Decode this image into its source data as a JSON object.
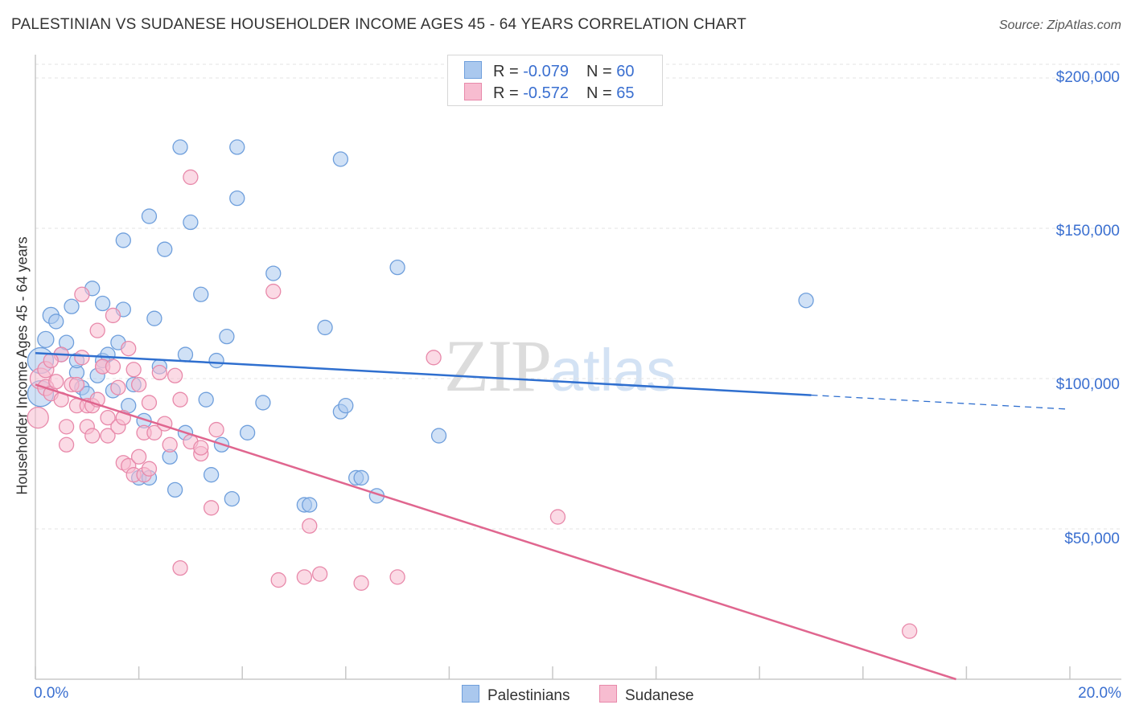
{
  "title": "PALESTINIAN VS SUDANESE HOUSEHOLDER INCOME AGES 45 - 64 YEARS CORRELATION CHART",
  "source": "Source: ZipAtlas.com",
  "watermark": {
    "zip": "ZIP",
    "atlas": "atlas"
  },
  "legend": {
    "rows": [
      {
        "r_label": "R = ",
        "r_value": "-0.079",
        "n_label": "N = ",
        "n_value": "60"
      },
      {
        "r_label": "R = ",
        "r_value": "-0.572",
        "n_label": "N = ",
        "n_value": "65"
      }
    ]
  },
  "bottom_legend": [
    "Palestinians",
    "Sudanese"
  ],
  "colors": {
    "palestinians_fill": "#aac8ee",
    "palestinians_stroke": "#6f9fdc",
    "palestinians_line": "#2f6fcf",
    "sudanese_fill": "#f7bcd0",
    "sudanese_stroke": "#e889aa",
    "sudanese_line": "#e0668f",
    "tick_text": "#3a6fd0",
    "grid": "#e3e3e3"
  },
  "chart_data": {
    "type": "scatter",
    "title": "PALESTINIAN VS SUDANESE HOUSEHOLDER INCOME AGES 45 - 64 YEARS CORRELATION CHART",
    "xlabel": "",
    "ylabel": "Householder Income Ages 45 - 64 years",
    "xlim": [
      0,
      20
    ],
    "ylim": [
      0,
      205000
    ],
    "x_tick_labels": [
      "0.0%",
      "20.0%"
    ],
    "y_ticks": [
      50000,
      100000,
      150000,
      200000
    ],
    "y_tick_labels": [
      "$50,000",
      "$100,000",
      "$150,000",
      "$200,000"
    ],
    "grid": "horizontal dashed",
    "series": [
      {
        "name": "Palestinians",
        "r": -0.079,
        "n": 60,
        "trend": {
          "x0": 0.0,
          "y0": 108500,
          "x1": 15.0,
          "y1": 94500,
          "dashed_to_x": 20.0,
          "dashed_to_y": 89800
        },
        "points": [
          [
            0.1,
            106000,
            16
          ],
          [
            0.1,
            95000,
            16
          ],
          [
            0.2,
            113000,
            10
          ],
          [
            0.3,
            121000,
            10
          ],
          [
            0.4,
            119000,
            9
          ],
          [
            0.5,
            108000,
            9
          ],
          [
            0.6,
            112000,
            9
          ],
          [
            0.7,
            124000,
            9
          ],
          [
            0.8,
            102000,
            9
          ],
          [
            0.8,
            106000,
            9
          ],
          [
            0.9,
            97000,
            9
          ],
          [
            1.0,
            95000,
            9
          ],
          [
            1.1,
            130000,
            9
          ],
          [
            1.2,
            101000,
            9
          ],
          [
            1.3,
            125000,
            9
          ],
          [
            1.3,
            106000,
            9
          ],
          [
            1.4,
            108000,
            9
          ],
          [
            1.5,
            96000,
            9
          ],
          [
            1.6,
            112000,
            9
          ],
          [
            1.7,
            123000,
            9
          ],
          [
            1.7,
            146000,
            9
          ],
          [
            1.8,
            91000,
            9
          ],
          [
            1.9,
            98000,
            9
          ],
          [
            2.0,
            67000,
            9
          ],
          [
            2.1,
            86000,
            9
          ],
          [
            2.2,
            67000,
            9
          ],
          [
            2.2,
            154000,
            9
          ],
          [
            2.3,
            120000,
            9
          ],
          [
            2.4,
            104000,
            9
          ],
          [
            2.5,
            143000,
            9
          ],
          [
            2.6,
            74000,
            9
          ],
          [
            2.7,
            63000,
            9
          ],
          [
            2.8,
            177000,
            9
          ],
          [
            2.9,
            108000,
            9
          ],
          [
            2.9,
            82000,
            9
          ],
          [
            3.0,
            152000,
            9
          ],
          [
            3.2,
            128000,
            9
          ],
          [
            3.3,
            93000,
            9
          ],
          [
            3.4,
            68000,
            9
          ],
          [
            3.5,
            106000,
            9
          ],
          [
            3.6,
            78000,
            9
          ],
          [
            3.7,
            114000,
            9
          ],
          [
            3.8,
            60000,
            9
          ],
          [
            3.9,
            177000,
            9
          ],
          [
            3.9,
            160000,
            9
          ],
          [
            4.1,
            82000,
            9
          ],
          [
            4.4,
            92000,
            9
          ],
          [
            4.6,
            135000,
            9
          ],
          [
            5.2,
            58000,
            9
          ],
          [
            5.3,
            58000,
            9
          ],
          [
            5.6,
            117000,
            9
          ],
          [
            5.9,
            173000,
            9
          ],
          [
            5.9,
            89000,
            9
          ],
          [
            6.0,
            91000,
            9
          ],
          [
            6.2,
            67000,
            9
          ],
          [
            6.3,
            67000,
            9
          ],
          [
            6.6,
            61000,
            9
          ],
          [
            7.0,
            137000,
            9
          ],
          [
            7.8,
            81000,
            9
          ],
          [
            14.9,
            126000,
            9
          ]
        ]
      },
      {
        "name": "Sudanese",
        "r": -0.572,
        "n": 65,
        "trend": {
          "x0": 0.0,
          "y0": 98000,
          "x1": 17.8,
          "y1": 0
        },
        "points": [
          [
            0.05,
            87000,
            13
          ],
          [
            0.1,
            100000,
            13
          ],
          [
            0.2,
            103000,
            10
          ],
          [
            0.2,
            97000,
            10
          ],
          [
            0.3,
            95000,
            9
          ],
          [
            0.4,
            99000,
            9
          ],
          [
            0.5,
            93000,
            9
          ],
          [
            0.5,
            108000,
            9
          ],
          [
            0.6,
            78000,
            9
          ],
          [
            0.6,
            84000,
            9
          ],
          [
            0.7,
            98000,
            9
          ],
          [
            0.8,
            91000,
            9
          ],
          [
            0.8,
            98000,
            9
          ],
          [
            0.9,
            107000,
            9
          ],
          [
            0.9,
            128000,
            9
          ],
          [
            1.0,
            84000,
            9
          ],
          [
            1.0,
            91000,
            9
          ],
          [
            1.1,
            91000,
            9
          ],
          [
            1.1,
            81000,
            9
          ],
          [
            1.2,
            116000,
            9
          ],
          [
            1.2,
            93000,
            9
          ],
          [
            1.3,
            104000,
            9
          ],
          [
            1.3,
            104000,
            9
          ],
          [
            1.4,
            87000,
            9
          ],
          [
            1.4,
            81000,
            9
          ],
          [
            1.5,
            104000,
            9
          ],
          [
            1.5,
            121000,
            9
          ],
          [
            1.6,
            97000,
            9
          ],
          [
            1.6,
            84000,
            9
          ],
          [
            1.7,
            87000,
            9
          ],
          [
            1.7,
            72000,
            9
          ],
          [
            1.8,
            110000,
            9
          ],
          [
            1.8,
            71000,
            9
          ],
          [
            1.9,
            103000,
            9
          ],
          [
            1.9,
            68000,
            9
          ],
          [
            2.0,
            74000,
            9
          ],
          [
            2.0,
            98000,
            9
          ],
          [
            2.1,
            82000,
            9
          ],
          [
            2.1,
            68000,
            9
          ],
          [
            2.2,
            70000,
            9
          ],
          [
            2.2,
            92000,
            9
          ],
          [
            2.3,
            82000,
            9
          ],
          [
            2.4,
            102000,
            9
          ],
          [
            2.5,
            85000,
            9
          ],
          [
            2.6,
            78000,
            9
          ],
          [
            2.7,
            101000,
            9
          ],
          [
            2.8,
            93000,
            9
          ],
          [
            2.8,
            37000,
            9
          ],
          [
            3.0,
            167000,
            9
          ],
          [
            3.0,
            79000,
            9
          ],
          [
            3.2,
            75000,
            9
          ],
          [
            3.2,
            77000,
            9
          ],
          [
            3.4,
            57000,
            9
          ],
          [
            3.5,
            83000,
            9
          ],
          [
            4.6,
            129000,
            9
          ],
          [
            4.7,
            33000,
            9
          ],
          [
            5.2,
            34000,
            9
          ],
          [
            5.3,
            51000,
            9
          ],
          [
            5.5,
            35000,
            9
          ],
          [
            6.3,
            32000,
            9
          ],
          [
            7.0,
            34000,
            9
          ],
          [
            7.7,
            107000,
            9
          ],
          [
            10.1,
            54000,
            9
          ],
          [
            16.9,
            16000,
            9
          ],
          [
            0.3,
            106000,
            9
          ]
        ]
      }
    ]
  }
}
